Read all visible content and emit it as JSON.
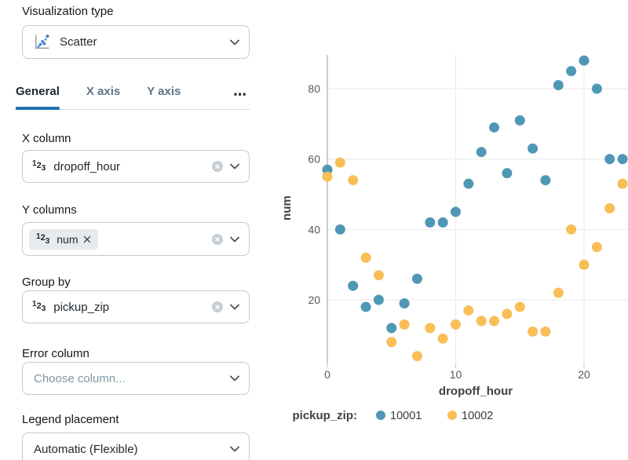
{
  "sidebar": {
    "viz_type": {
      "label": "Visualization type",
      "value": "Scatter",
      "icon": "scatter-chart-icon"
    },
    "tabs": {
      "items": [
        {
          "label": "General",
          "active": true
        },
        {
          "label": "X axis",
          "active": false
        },
        {
          "label": "Y axis",
          "active": false
        }
      ],
      "overflow_label": "⋯",
      "overflow_icon": "ellipsis-icon"
    },
    "x_column": {
      "label": "X column",
      "value": "dropoff_hour",
      "type_icon": "number-type-icon",
      "clear_icon": "clear-circle-icon"
    },
    "y_columns": {
      "label": "Y columns",
      "value": "num",
      "type_icon": "number-type-icon",
      "remove_icon": "remove-x-icon",
      "clear_icon": "clear-circle-icon"
    },
    "group_by": {
      "label": "Group by",
      "value": "pickup_zip",
      "type_icon": "number-type-icon",
      "clear_icon": "clear-circle-icon"
    },
    "error_column": {
      "label": "Error column",
      "placeholder": "Choose column..."
    },
    "legend_placement": {
      "label": "Legend placement",
      "value": "Automatic (Flexible)"
    }
  },
  "colors": {
    "accent": "#2272B4",
    "series_10001": "#4F98B5",
    "series_10002": "#F9BE56",
    "gridline": "#E9EAEB",
    "axis_line": "#A6ABB0",
    "tick_text": "#54595E",
    "axis_title": "#3C4347",
    "legend_text": "#33393D"
  },
  "chart_data": {
    "type": "scatter",
    "xlabel": "dropoff_hour",
    "ylabel": "num",
    "x_ticks": [
      0,
      10,
      20
    ],
    "y_ticks": [
      20,
      40,
      60,
      80
    ],
    "xlim": [
      0,
      23.5
    ],
    "ylim": [
      2,
      90
    ],
    "grid": true,
    "legend_title": "pickup_zip:",
    "legend_position": "bottom",
    "series": [
      {
        "name": "10001",
        "points": [
          [
            0,
            57
          ],
          [
            1,
            40
          ],
          [
            2,
            24
          ],
          [
            3,
            18
          ],
          [
            4,
            20
          ],
          [
            5,
            12
          ],
          [
            6,
            19
          ],
          [
            7,
            26
          ],
          [
            8,
            42
          ],
          [
            9,
            42
          ],
          [
            10,
            45
          ],
          [
            11,
            53
          ],
          [
            12,
            62
          ],
          [
            13,
            69
          ],
          [
            14,
            56
          ],
          [
            15,
            71
          ],
          [
            16,
            63
          ],
          [
            17,
            54
          ],
          [
            18,
            81
          ],
          [
            19,
            85
          ],
          [
            20,
            88
          ],
          [
            21,
            80
          ],
          [
            22,
            60
          ],
          [
            23,
            60
          ]
        ]
      },
      {
        "name": "10002",
        "points": [
          [
            0,
            55
          ],
          [
            1,
            59
          ],
          [
            2,
            54
          ],
          [
            3,
            32
          ],
          [
            4,
            27
          ],
          [
            5,
            8
          ],
          [
            6,
            13
          ],
          [
            7,
            4
          ],
          [
            8,
            12
          ],
          [
            9,
            9
          ],
          [
            10,
            13
          ],
          [
            11,
            17
          ],
          [
            12,
            14
          ],
          [
            13,
            14
          ],
          [
            14,
            16
          ],
          [
            15,
            18
          ],
          [
            16,
            11
          ],
          [
            17,
            11
          ],
          [
            18,
            22
          ],
          [
            19,
            40
          ],
          [
            20,
            30
          ],
          [
            21,
            35
          ],
          [
            22,
            46
          ],
          [
            23,
            53
          ]
        ]
      }
    ]
  }
}
